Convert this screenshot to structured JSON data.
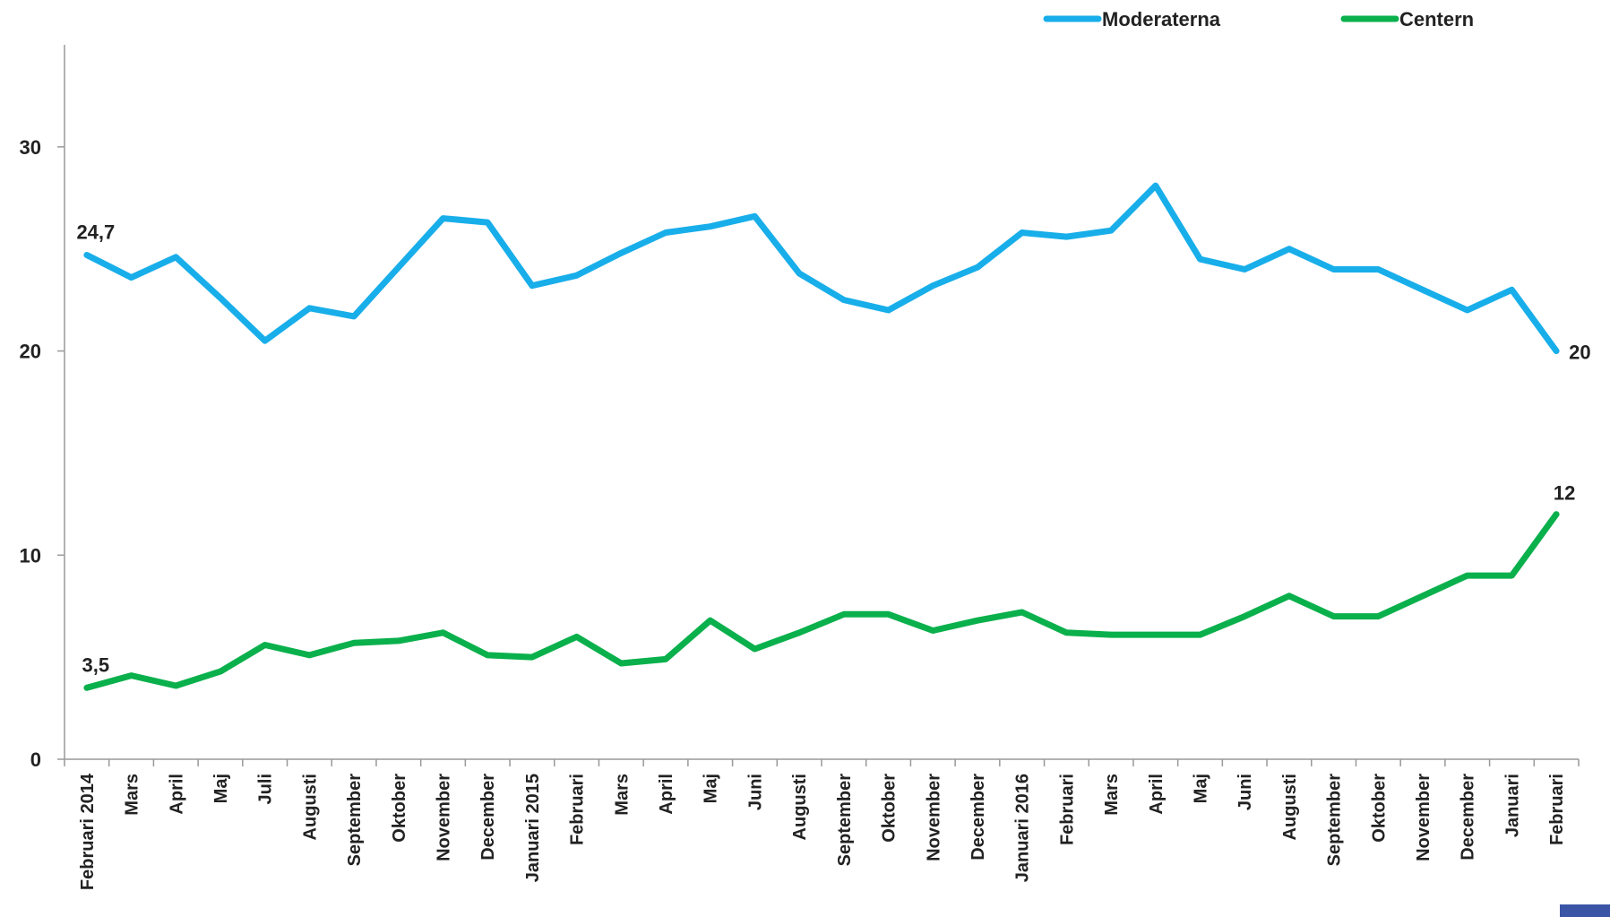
{
  "chart_data": {
    "type": "line",
    "categories": [
      "Februari 2014",
      "Mars",
      "April",
      "Maj",
      "Juli",
      "Augusti",
      "September",
      "Oktober",
      "November",
      "December",
      "Januari 2015",
      "Februari",
      "Mars",
      "April",
      "Maj",
      "Juni",
      "Augusti",
      "September",
      "Oktober",
      "November",
      "December",
      "Januari 2016",
      "Februari",
      "Mars",
      "April",
      "Maj",
      "Juni",
      "Augusti",
      "September",
      "Oktober",
      "November",
      "December",
      "Januari",
      "Februari"
    ],
    "series": [
      {
        "name": "Moderaterna",
        "color": "#18aeea",
        "values": [
          24.7,
          23.6,
          24.6,
          22.6,
          20.5,
          22.1,
          21.7,
          24.1,
          26.5,
          26.3,
          23.2,
          23.7,
          24.8,
          25.8,
          26.1,
          26.6,
          23.8,
          22.5,
          22.0,
          23.2,
          24.1,
          25.8,
          25.6,
          25.9,
          28.1,
          24.5,
          24.0,
          25.0,
          24.0,
          24.0,
          23.0,
          22.0,
          23.0,
          20.0
        ]
      },
      {
        "name": "Centern",
        "color": "#0ab04c",
        "values": [
          3.5,
          4.1,
          3.6,
          4.3,
          5.6,
          5.1,
          5.7,
          5.8,
          6.2,
          5.1,
          5.0,
          6.0,
          4.7,
          4.9,
          6.8,
          5.4,
          6.2,
          7.1,
          7.1,
          6.3,
          6.8,
          7.2,
          6.2,
          6.1,
          6.1,
          6.1,
          7.0,
          8.0,
          7.0,
          7.0,
          8.0,
          9.0,
          9.0,
          12.0
        ]
      }
    ],
    "data_labels": [
      {
        "series": 0,
        "index": 0,
        "text": "24,7"
      },
      {
        "series": 0,
        "index": 33,
        "text": "20"
      },
      {
        "series": 1,
        "index": 0,
        "text": "3,5"
      },
      {
        "series": 1,
        "index": 33,
        "text": "12"
      }
    ],
    "yticks": [
      0,
      10,
      20,
      30
    ],
    "ytick_labels": [
      "0",
      "10",
      "20",
      "30"
    ],
    "ylim": [
      0,
      35
    ],
    "legend_position": "top-right",
    "grid": false
  }
}
